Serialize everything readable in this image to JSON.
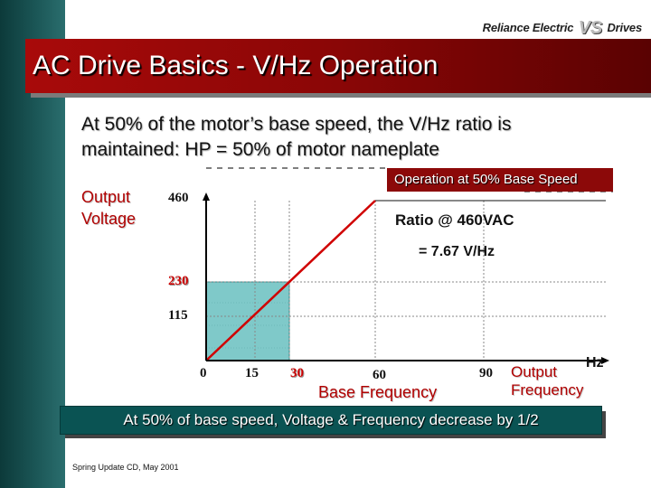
{
  "header": {
    "logo_text": "Reliance Electric",
    "logo_mark": "VS",
    "logo_suffix": "Drives",
    "title": "AC Drive Basics - V/Hz Operation"
  },
  "intro": {
    "line1": "At 50% of the motor’s base speed, the V/Hz ratio is",
    "line2": "maintained:  HP = 50% of motor nameplate"
  },
  "graph": {
    "y_label_line1": "Output",
    "y_label_line2": "Voltage",
    "y_ticks": [
      "460",
      "230",
      "115"
    ],
    "x_ticks": [
      "0",
      "15",
      "30",
      "60",
      "90"
    ],
    "operation_label": "Operation at 50% Base Speed",
    "ratio_line1": "Ratio @ 460VAC",
    "ratio_line2": "= 7.67 V/Hz",
    "x_label": "Base Frequency",
    "out_freq_line1": "Output",
    "out_freq_line2": "Frequency",
    "unit": "Hz"
  },
  "summary": "At 50% of base speed, Voltage & Frequency decrease by 1/2",
  "footer": "Spring Update CD, May 2001",
  "colors": {
    "title_bar": "#8a0606",
    "accent_red": "#b00000",
    "summary_bar": "#0a5353",
    "shade_fill": "#7fc9c9",
    "side_bar": "#1b5656"
  }
}
